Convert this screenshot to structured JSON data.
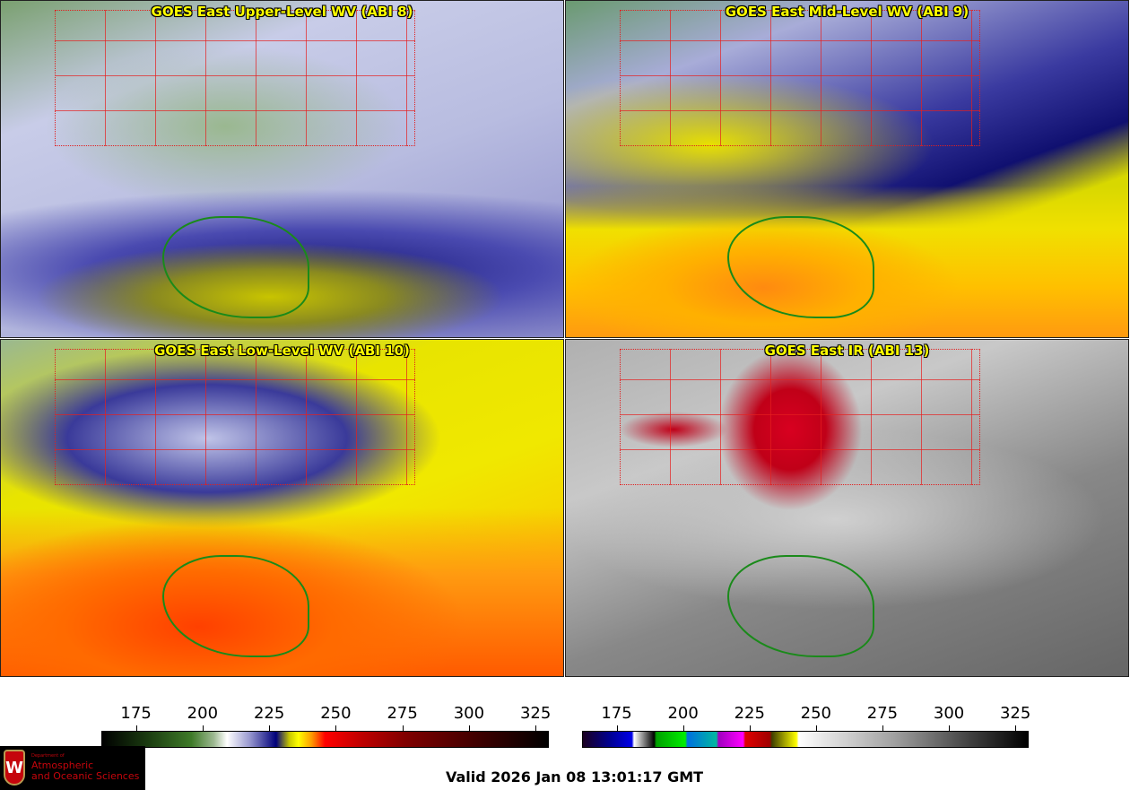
{
  "panels": [
    {
      "title": "GOES East Upper-Level WV (ABI 8)"
    },
    {
      "title": "GOES East Mid-Level WV (ABI 9)"
    },
    {
      "title": "GOES East Low-Level WV (ABI 10)"
    },
    {
      "title": "GOES East IR (ABI 13)"
    }
  ],
  "colorbars": [
    {
      "name": "water-vapor",
      "ticks": [
        "175",
        "200",
        "225",
        "250",
        "275",
        "300",
        "325"
      ],
      "range": [
        162,
        330
      ]
    },
    {
      "name": "infrared",
      "ticks": [
        "175",
        "200",
        "225",
        "250",
        "275",
        "300",
        "325"
      ],
      "range": [
        162,
        330
      ]
    }
  ],
  "logo": {
    "line1": "Department of",
    "line2": "Atmospheric",
    "line3": "and Oceanic Sciences",
    "emblem": "W"
  },
  "valid_time": "Valid 2026 Jan 08 13:01:17 GMT"
}
